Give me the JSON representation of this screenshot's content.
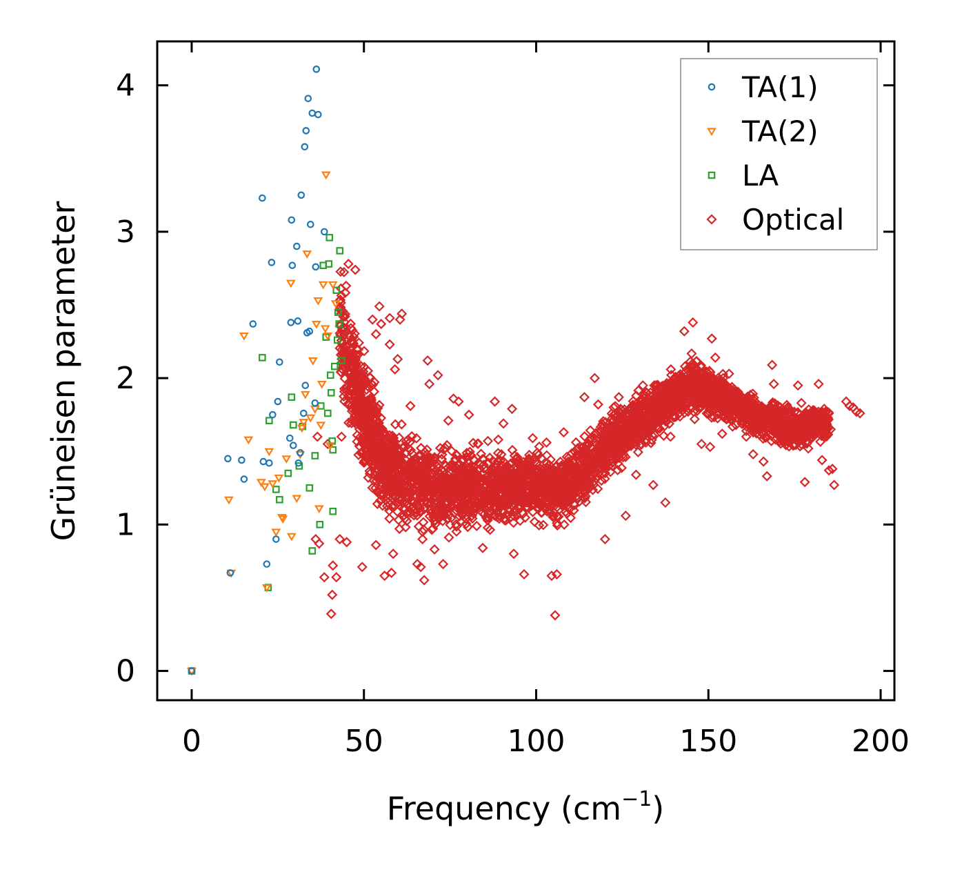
{
  "chart_data": {
    "type": "scatter",
    "title": "",
    "xlabel": "Frequency (cm",
    "xlabel_sup": "−1",
    "xlabel_suffix": ")",
    "ylabel": "Grüneisen parameter",
    "xlim": [
      -10,
      204
    ],
    "ylim": [
      -0.2,
      4.3
    ],
    "xticks": [
      0,
      50,
      100,
      150,
      200
    ],
    "yticks": [
      0,
      1,
      2,
      3,
      4
    ],
    "grid": false,
    "legend_position": "top-right",
    "series": [
      {
        "name": "TA(1)",
        "marker": "circle",
        "color": "#1f77b4",
        "points": [
          [
            0,
            0
          ],
          [
            10.5,
            1.45
          ],
          [
            11.2,
            0.67
          ],
          [
            14.5,
            1.44
          ],
          [
            15.2,
            1.31
          ],
          [
            17.8,
            2.37
          ],
          [
            20.5,
            3.23
          ],
          [
            20.8,
            1.43
          ],
          [
            21.8,
            0.73
          ],
          [
            22.5,
            1.42
          ],
          [
            23.2,
            2.79
          ],
          [
            23.5,
            1.75
          ],
          [
            24.5,
            0.9
          ],
          [
            25,
            1.84
          ],
          [
            25.5,
            2.11
          ],
          [
            28.5,
            1.59
          ],
          [
            28.8,
            2.38
          ],
          [
            29,
            3.08
          ],
          [
            29.2,
            2.77
          ],
          [
            29.5,
            1.54
          ],
          [
            30.5,
            2.9
          ],
          [
            30.8,
            2.39
          ],
          [
            31,
            1.42
          ],
          [
            31.5,
            1.49
          ],
          [
            31.8,
            3.25
          ],
          [
            32.5,
            1.76
          ],
          [
            32.8,
            3.58
          ],
          [
            33,
            1.95
          ],
          [
            33.2,
            3.69
          ],
          [
            33.5,
            2.31
          ],
          [
            33.8,
            3.91
          ],
          [
            34.2,
            2.32
          ],
          [
            34.5,
            3.05
          ],
          [
            35,
            3.81
          ],
          [
            35.8,
            1.83
          ],
          [
            36,
            2.76
          ],
          [
            36.2,
            4.11
          ],
          [
            36.7,
            3.8
          ],
          [
            38.5,
            3
          ]
        ]
      },
      {
        "name": "TA(2)",
        "marker": "triangle-down",
        "color": "#ff7f0e",
        "points": [
          [
            0,
            0
          ],
          [
            10.8,
            1.17
          ],
          [
            11.5,
            0.67
          ],
          [
            15.2,
            2.29
          ],
          [
            16.5,
            1.58
          ],
          [
            20.2,
            1.29
          ],
          [
            21.2,
            1.26
          ],
          [
            21.8,
            0.57
          ],
          [
            22.5,
            1.5
          ],
          [
            23.5,
            1.28
          ],
          [
            24.5,
            0.95
          ],
          [
            25.3,
            1.32
          ],
          [
            26.2,
            1.05
          ],
          [
            26.5,
            1.04
          ],
          [
            27.5,
            1.45
          ],
          [
            28.8,
            2.65
          ],
          [
            29,
            0.92
          ],
          [
            30.5,
            1.18
          ],
          [
            31.5,
            1.48
          ],
          [
            32,
            1.66
          ],
          [
            32.5,
            1.7
          ],
          [
            33,
            1.89
          ],
          [
            33.5,
            2.85
          ],
          [
            34.5,
            1.73
          ],
          [
            35.2,
            2.12
          ],
          [
            35.8,
            1.79
          ],
          [
            36.2,
            2.37
          ],
          [
            36.7,
            2.53
          ],
          [
            37,
            1.11
          ],
          [
            37.5,
            1.68
          ],
          [
            37.8,
            1.96
          ],
          [
            38.2,
            2.64
          ],
          [
            38.8,
            2.34
          ],
          [
            39,
            3.39
          ],
          [
            39.5,
            2.29
          ],
          [
            40.2,
            1.54
          ],
          [
            41,
            2.64
          ],
          [
            41.8,
            2.51
          ]
        ]
      },
      {
        "name": "LA",
        "marker": "square",
        "color": "#2ca02c",
        "points": [
          [
            0,
            0
          ],
          [
            20.5,
            2.14
          ],
          [
            22.2,
            0.57
          ],
          [
            22.5,
            1.71
          ],
          [
            24.5,
            1.24
          ],
          [
            25.5,
            1.17
          ],
          [
            28,
            1.35
          ],
          [
            29,
            1.87
          ],
          [
            29.5,
            1.68
          ],
          [
            31.2,
            1.4
          ],
          [
            32.2,
            1.67
          ],
          [
            34.2,
            1.25
          ],
          [
            35,
            0.82
          ],
          [
            35.8,
            1.47
          ],
          [
            37.2,
            1
          ],
          [
            37.5,
            1.81
          ],
          [
            38.2,
            2.77
          ],
          [
            39,
            2.28
          ],
          [
            39.5,
            1.76
          ],
          [
            39.8,
            2.78
          ],
          [
            40,
            2.96
          ],
          [
            40.3,
            2.02
          ],
          [
            40.5,
            1.9
          ],
          [
            40.8,
            1.57
          ],
          [
            41,
            1.09
          ],
          [
            41,
            1.51
          ],
          [
            41.5,
            2.08
          ],
          [
            42,
            2.6
          ],
          [
            42.3,
            2.26
          ],
          [
            42.5,
            2.45
          ],
          [
            42.8,
            2.37
          ],
          [
            43,
            2.87
          ],
          [
            43.5,
            2.12
          ]
        ]
      },
      {
        "name": "Optical",
        "marker": "diamond",
        "color": "#d62728",
        "dense_bands": [
          [
            43,
            2.35,
            0.35
          ],
          [
            47,
            2.0,
            0.3
          ],
          [
            50,
            1.75,
            0.3
          ],
          [
            53,
            1.55,
            0.27
          ],
          [
            56,
            1.4,
            0.25
          ],
          [
            60,
            1.32,
            0.25
          ],
          [
            65,
            1.27,
            0.25
          ],
          [
            70,
            1.23,
            0.25
          ],
          [
            75,
            1.24,
            0.22
          ],
          [
            80,
            1.27,
            0.2
          ],
          [
            85,
            1.25,
            0.2
          ],
          [
            90,
            1.24,
            0.18
          ],
          [
            95,
            1.26,
            0.18
          ],
          [
            100,
            1.27,
            0.18
          ],
          [
            105,
            1.24,
            0.18
          ],
          [
            110,
            1.28,
            0.17
          ],
          [
            115,
            1.4,
            0.18
          ],
          [
            120,
            1.52,
            0.17
          ],
          [
            125,
            1.62,
            0.16
          ],
          [
            130,
            1.72,
            0.15
          ],
          [
            135,
            1.8,
            0.14
          ],
          [
            140,
            1.88,
            0.14
          ],
          [
            145,
            1.96,
            0.14
          ],
          [
            150,
            1.9,
            0.13
          ],
          [
            155,
            1.85,
            0.12
          ],
          [
            160,
            1.8,
            0.1
          ],
          [
            165,
            1.72,
            0.1
          ],
          [
            170,
            1.68,
            0.1
          ],
          [
            175,
            1.65,
            0.1
          ],
          [
            180,
            1.68,
            0.1
          ],
          [
            185,
            1.7,
            0.08
          ]
        ],
        "points": [
          [
            36,
            0.9
          ],
          [
            36.5,
            1.6
          ],
          [
            37,
            0.87
          ],
          [
            38.5,
            0.64
          ],
          [
            39.5,
            1.55
          ],
          [
            40.5,
            0.39
          ],
          [
            40.8,
            0.52
          ],
          [
            41,
            0.72
          ],
          [
            42,
            0.64
          ],
          [
            43,
            0.9
          ],
          [
            43.5,
            1.6
          ],
          [
            45,
            0.88
          ],
          [
            45.5,
            2.78
          ],
          [
            46.5,
            2.25
          ],
          [
            47.5,
            2.74
          ],
          [
            49.5,
            0.71
          ],
          [
            51,
            1.73
          ],
          [
            52.5,
            2.4
          ],
          [
            53.5,
            0.86
          ],
          [
            53.5,
            2.3
          ],
          [
            54.5,
            2.49
          ],
          [
            55,
            2.37
          ],
          [
            56,
            0.65
          ],
          [
            57.5,
            2.23
          ],
          [
            57.5,
            2.41
          ],
          [
            58,
            0.67
          ],
          [
            58.5,
            0.8
          ],
          [
            59,
            2.06
          ],
          [
            59.8,
            2.13
          ],
          [
            60.5,
            2.4
          ],
          [
            61,
            2.44
          ],
          [
            63.5,
            1.81
          ],
          [
            65.5,
            0.73
          ],
          [
            66.5,
            0.71
          ],
          [
            67.5,
            0.62
          ],
          [
            68.5,
            2.12
          ],
          [
            69,
            1.96
          ],
          [
            70.5,
            0.83
          ],
          [
            71.5,
            2.02
          ],
          [
            73,
            0.73
          ],
          [
            74.5,
            1.71
          ],
          [
            76,
            1.86
          ],
          [
            77.5,
            1.84
          ],
          [
            80.5,
            1.75
          ],
          [
            84.5,
            0.84
          ],
          [
            86,
            1.57
          ],
          [
            88,
            1.84
          ],
          [
            89,
            1.58
          ],
          [
            90.5,
            1.69
          ],
          [
            93,
            1.79
          ],
          [
            93.5,
            0.8
          ],
          [
            94.5,
            1.46
          ],
          [
            96.5,
            0.66
          ],
          [
            99,
            1.59
          ],
          [
            100.5,
            1.37
          ],
          [
            103,
            1.56
          ],
          [
            104.5,
            0.65
          ],
          [
            105.5,
            0.38
          ],
          [
            106,
            0.66
          ],
          [
            108,
            1.63
          ],
          [
            112,
            1.52
          ],
          [
            114,
            1.87
          ],
          [
            117,
            2
          ],
          [
            118,
            1.82
          ],
          [
            120,
            0.9
          ],
          [
            122.5,
            1.8
          ],
          [
            124,
            1.87
          ],
          [
            126,
            1.06
          ],
          [
            129,
            1.34
          ],
          [
            131,
            1.95
          ],
          [
            134,
            1.27
          ],
          [
            137.5,
            1.15
          ],
          [
            139,
            1.6
          ],
          [
            143,
            2.32
          ],
          [
            145.5,
            2.38
          ],
          [
            146,
            1.72
          ],
          [
            148,
            1.55
          ],
          [
            150.5,
            1.53
          ],
          [
            151,
            2.27
          ],
          [
            152,
            2.14
          ],
          [
            154,
            1.62
          ],
          [
            156,
            2.03
          ],
          [
            158,
            1.68
          ],
          [
            161,
            1.6
          ],
          [
            163,
            1.48
          ],
          [
            165,
            1.75
          ],
          [
            166,
            1.43
          ],
          [
            167,
            1.33
          ],
          [
            168.5,
            2.09
          ],
          [
            169,
            1.96
          ],
          [
            172,
            1.6
          ],
          [
            173,
            1.8
          ],
          [
            175,
            1.59
          ],
          [
            176,
            1.95
          ],
          [
            177,
            1.83
          ],
          [
            178,
            1.29
          ],
          [
            179,
            1.52
          ],
          [
            180,
            1.59
          ],
          [
            182,
            1.96
          ],
          [
            183,
            1.44
          ],
          [
            185,
            1.37
          ],
          [
            185.5,
            1.65
          ],
          [
            186,
            1.38
          ],
          [
            186.5,
            1.27
          ],
          [
            190,
            1.84
          ],
          [
            191,
            1.81
          ],
          [
            192,
            1.8
          ],
          [
            193,
            1.77
          ],
          [
            194,
            1.76
          ]
        ]
      }
    ]
  }
}
